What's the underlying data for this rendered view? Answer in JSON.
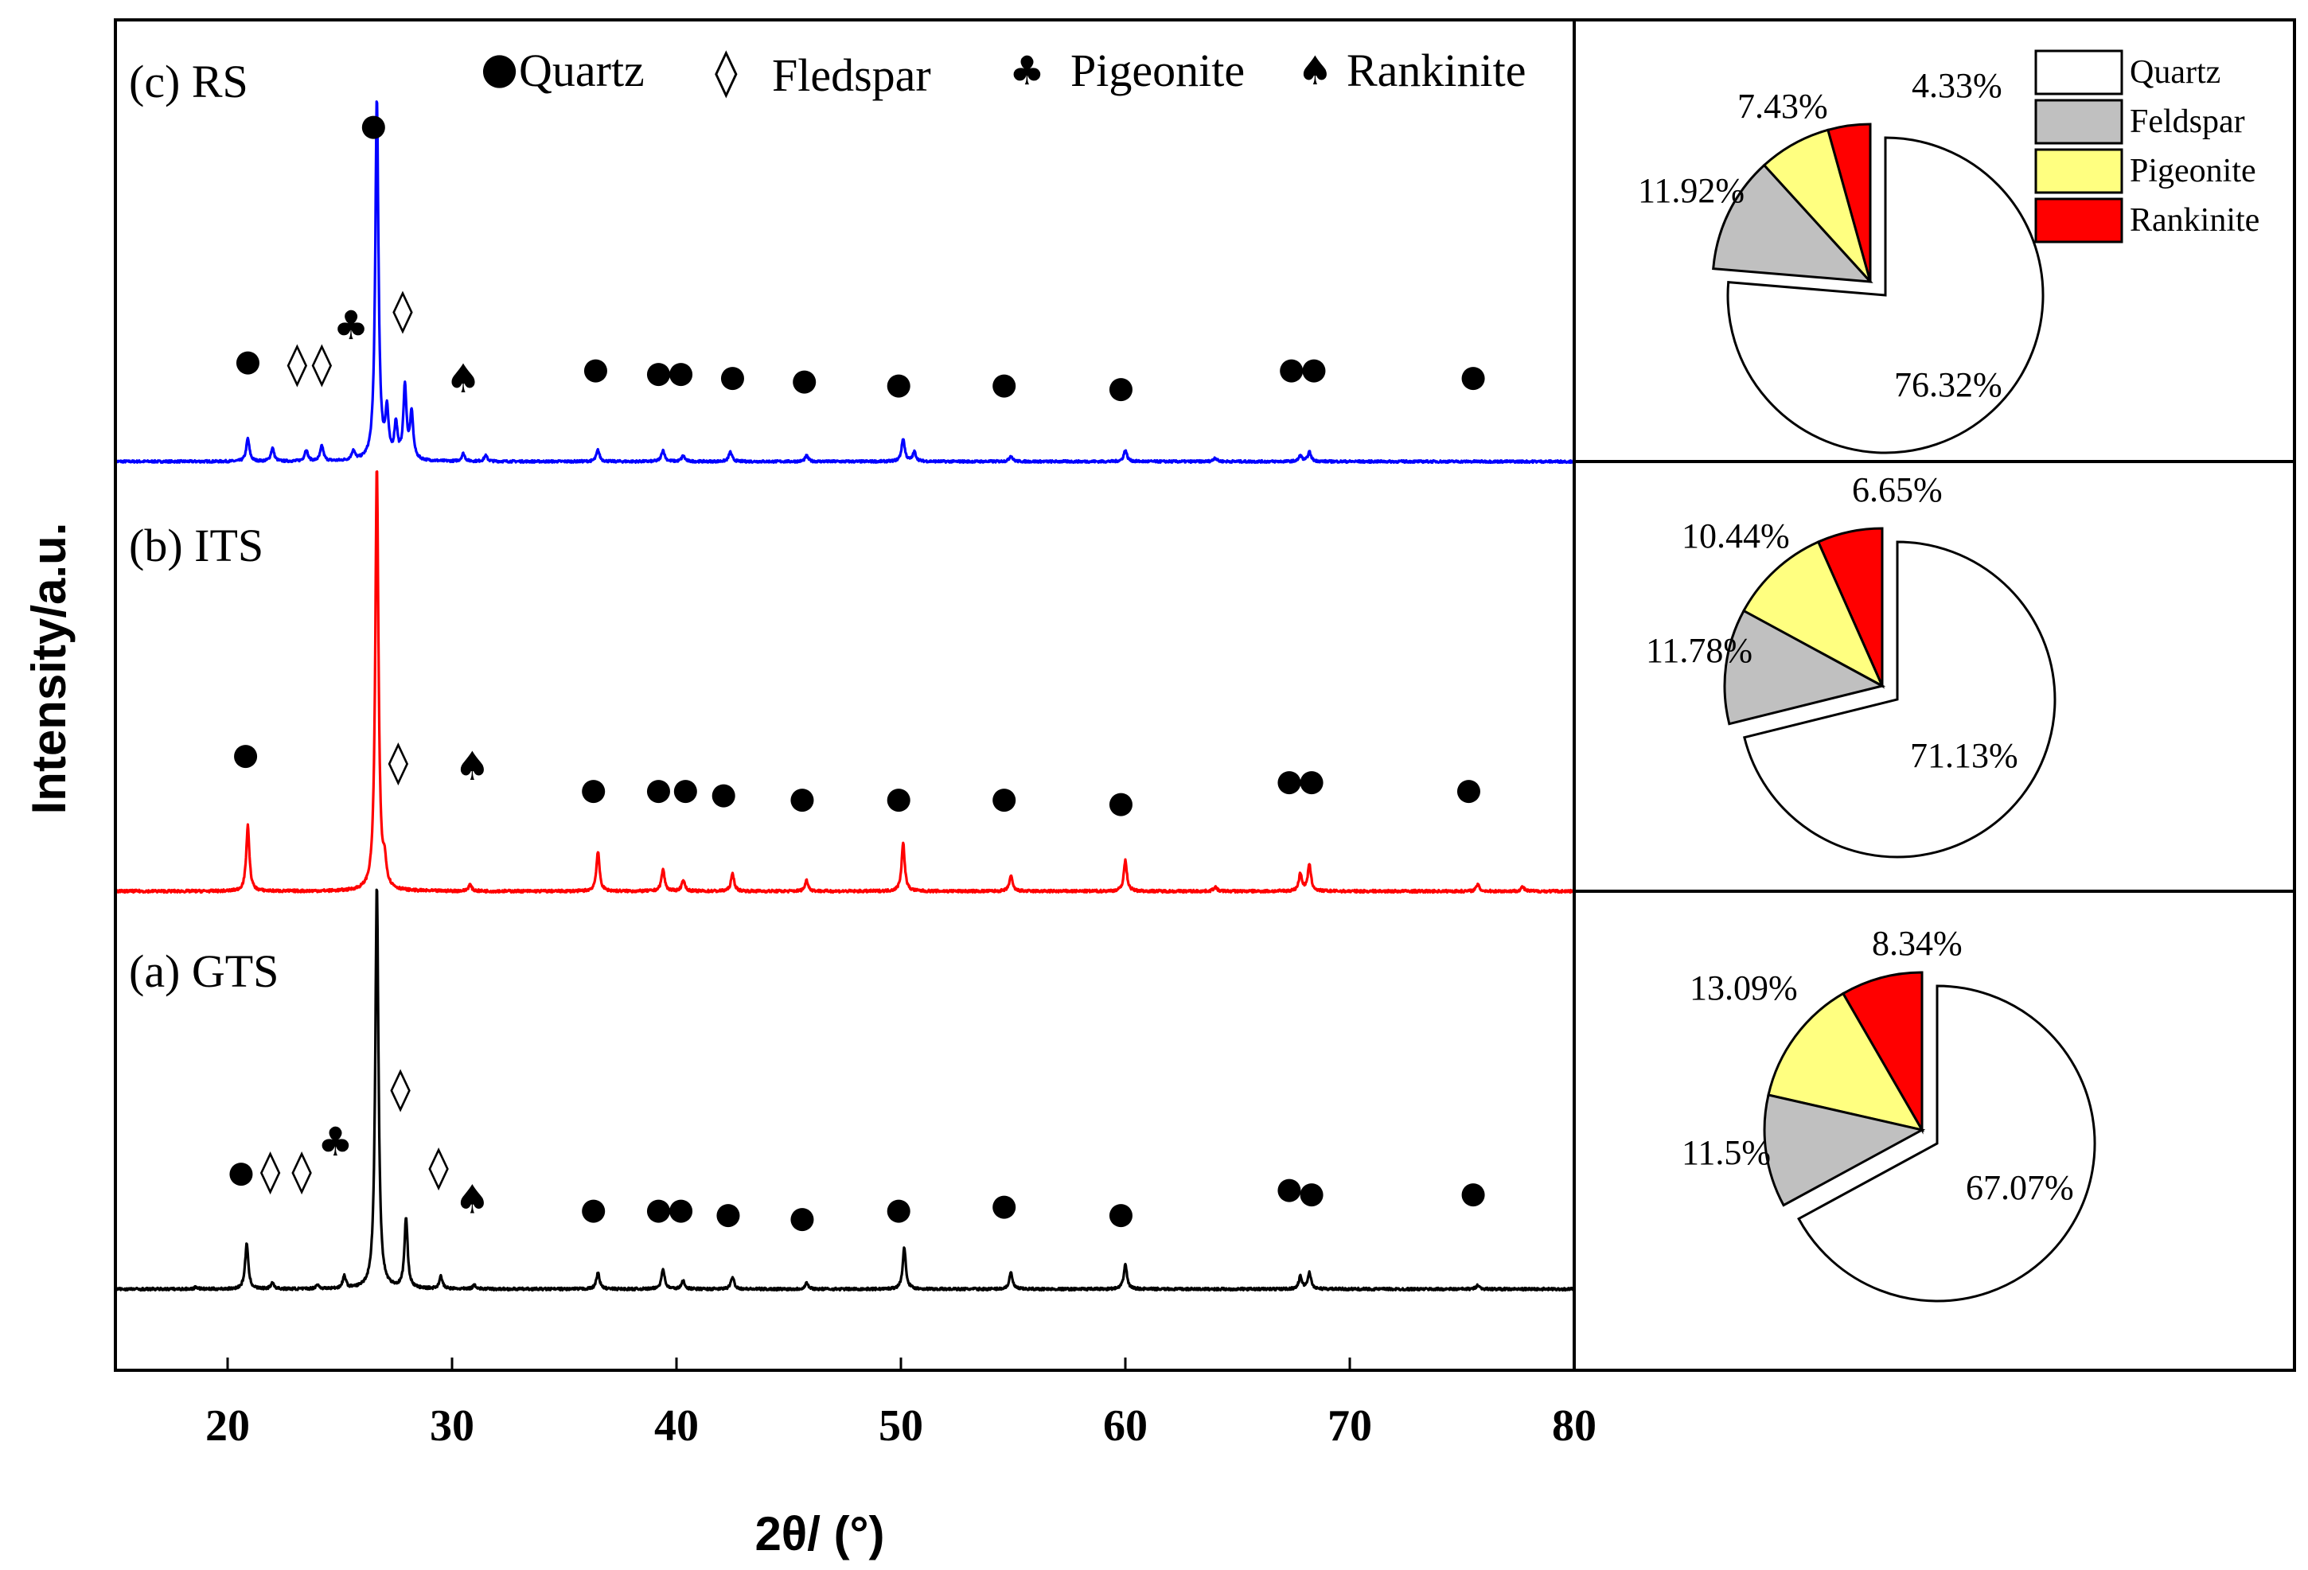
{
  "chart_data": [
    {
      "type": "line",
      "title": "",
      "xlabel": "2θ/ (°)",
      "ylabel": "Intensity/a.u.",
      "xlim": [
        15,
        80
      ],
      "xticks": [
        "20",
        "30",
        "40",
        "50",
        "60",
        "70",
        "80"
      ],
      "legend": {
        "placement": "top",
        "entries": [
          {
            "marker": "●",
            "label": "Quartz"
          },
          {
            "marker": "◊",
            "label": "Fledspar"
          },
          {
            "marker": "♣",
            "label": "Pigeonite"
          },
          {
            "marker": "♠",
            "label": "Rankinite"
          }
        ]
      },
      "series": [
        {
          "name": "(c) RS",
          "color": "#0000ff",
          "peaks": [
            {
              "x": 20.9,
              "h": 0.06
            },
            {
              "x": 22.0,
              "h": 0.035
            },
            {
              "x": 23.5,
              "h": 0.03
            },
            {
              "x": 24.2,
              "h": 0.04
            },
            {
              "x": 25.6,
              "h": 0.025
            },
            {
              "x": 26.65,
              "h": 0.95
            },
            {
              "x": 27.1,
              "h": 0.12
            },
            {
              "x": 27.5,
              "h": 0.09
            },
            {
              "x": 27.9,
              "h": 0.19
            },
            {
              "x": 28.2,
              "h": 0.12
            },
            {
              "x": 30.5,
              "h": 0.02
            },
            {
              "x": 31.5,
              "h": 0.015
            },
            {
              "x": 36.5,
              "h": 0.03
            },
            {
              "x": 39.4,
              "h": 0.03
            },
            {
              "x": 40.3,
              "h": 0.015
            },
            {
              "x": 42.4,
              "h": 0.025
            },
            {
              "x": 45.8,
              "h": 0.015
            },
            {
              "x": 50.1,
              "h": 0.06
            },
            {
              "x": 50.6,
              "h": 0.025
            },
            {
              "x": 54.9,
              "h": 0.015
            },
            {
              "x": 60.0,
              "h": 0.03
            },
            {
              "x": 64.0,
              "h": 0.01
            },
            {
              "x": 67.8,
              "h": 0.015
            },
            {
              "x": 68.2,
              "h": 0.025
            }
          ],
          "markers": [
            {
              "symbol": "●",
              "x": 26.5,
              "y": 0.88
            },
            {
              "symbol": "●",
              "x": 20.9,
              "y": 0.26
            },
            {
              "symbol": "◊",
              "x": 23.1,
              "y": 0.25
            },
            {
              "symbol": "◊",
              "x": 24.2,
              "y": 0.25
            },
            {
              "symbol": "♣",
              "x": 25.5,
              "y": 0.35
            },
            {
              "symbol": "◊",
              "x": 27.8,
              "y": 0.39
            },
            {
              "symbol": "♠",
              "x": 30.5,
              "y": 0.21
            },
            {
              "symbol": "●",
              "x": 36.4,
              "y": 0.24
            },
            {
              "symbol": "●",
              "x": 39.2,
              "y": 0.23
            },
            {
              "symbol": "●",
              "x": 40.2,
              "y": 0.23
            },
            {
              "symbol": "●",
              "x": 42.5,
              "y": 0.22
            },
            {
              "symbol": "●",
              "x": 45.7,
              "y": 0.21
            },
            {
              "symbol": "●",
              "x": 49.9,
              "y": 0.2
            },
            {
              "symbol": "●",
              "x": 54.6,
              "y": 0.2
            },
            {
              "symbol": "●",
              "x": 59.8,
              "y": 0.19
            },
            {
              "symbol": "●",
              "x": 67.4,
              "y": 0.24
            },
            {
              "symbol": "●",
              "x": 68.4,
              "y": 0.24
            },
            {
              "symbol": "●",
              "x": 75.5,
              "y": 0.22
            }
          ]
        },
        {
          "name": "(b) ITS",
          "color": "#ff0000",
          "peaks": [
            {
              "x": 20.9,
              "h": 0.15
            },
            {
              "x": 26.65,
              "h": 0.97
            },
            {
              "x": 27.0,
              "h": 0.05
            },
            {
              "x": 30.8,
              "h": 0.015
            },
            {
              "x": 36.5,
              "h": 0.09
            },
            {
              "x": 39.4,
              "h": 0.05
            },
            {
              "x": 40.3,
              "h": 0.025
            },
            {
              "x": 42.5,
              "h": 0.04
            },
            {
              "x": 45.8,
              "h": 0.025
            },
            {
              "x": 50.1,
              "h": 0.11
            },
            {
              "x": 54.9,
              "h": 0.035
            },
            {
              "x": 60.0,
              "h": 0.07
            },
            {
              "x": 64.0,
              "h": 0.01
            },
            {
              "x": 67.8,
              "h": 0.04
            },
            {
              "x": 68.2,
              "h": 0.06
            },
            {
              "x": 75.7,
              "h": 0.015
            },
            {
              "x": 77.7,
              "h": 0.01
            }
          ],
          "markers": [
            {
              "symbol": "●",
              "x": 20.8,
              "y": 0.31
            },
            {
              "symbol": "◊",
              "x": 27.6,
              "y": 0.29
            },
            {
              "symbol": "♠",
              "x": 30.9,
              "y": 0.28
            },
            {
              "symbol": "●",
              "x": 36.3,
              "y": 0.23
            },
            {
              "symbol": "●",
              "x": 39.2,
              "y": 0.23
            },
            {
              "symbol": "●",
              "x": 40.4,
              "y": 0.23
            },
            {
              "symbol": "●",
              "x": 42.1,
              "y": 0.22
            },
            {
              "symbol": "●",
              "x": 45.6,
              "y": 0.21
            },
            {
              "symbol": "●",
              "x": 49.9,
              "y": 0.21
            },
            {
              "symbol": "●",
              "x": 54.6,
              "y": 0.21
            },
            {
              "symbol": "●",
              "x": 59.8,
              "y": 0.2
            },
            {
              "symbol": "●",
              "x": 67.3,
              "y": 0.25
            },
            {
              "symbol": "●",
              "x": 68.3,
              "y": 0.25
            },
            {
              "symbol": "●",
              "x": 75.3,
              "y": 0.23
            }
          ]
        },
        {
          "name": "(a) GTS",
          "color": "#000000",
          "peaks": [
            {
              "x": 18.6,
              "h": 0.005
            },
            {
              "x": 20.85,
              "h": 0.11
            },
            {
              "x": 22.0,
              "h": 0.015
            },
            {
              "x": 24.0,
              "h": 0.01
            },
            {
              "x": 25.2,
              "h": 0.03
            },
            {
              "x": 26.65,
              "h": 0.98
            },
            {
              "x": 27.95,
              "h": 0.17
            },
            {
              "x": 29.5,
              "h": 0.03
            },
            {
              "x": 31.0,
              "h": 0.01
            },
            {
              "x": 36.5,
              "h": 0.04
            },
            {
              "x": 39.4,
              "h": 0.05
            },
            {
              "x": 40.3,
              "h": 0.02
            },
            {
              "x": 42.5,
              "h": 0.03
            },
            {
              "x": 45.8,
              "h": 0.015
            },
            {
              "x": 50.15,
              "h": 0.1
            },
            {
              "x": 54.9,
              "h": 0.04
            },
            {
              "x": 60.0,
              "h": 0.06
            },
            {
              "x": 67.8,
              "h": 0.03
            },
            {
              "x": 68.2,
              "h": 0.04
            },
            {
              "x": 75.7,
              "h": 0.01
            }
          ],
          "markers": [
            {
              "symbol": "●",
              "x": 20.6,
              "y": 0.28
            },
            {
              "symbol": "◊",
              "x": 21.9,
              "y": 0.28
            },
            {
              "symbol": "◊",
              "x": 23.3,
              "y": 0.28
            },
            {
              "symbol": "♣",
              "x": 24.8,
              "y": 0.35
            },
            {
              "symbol": "◊",
              "x": 27.7,
              "y": 0.48
            },
            {
              "symbol": "◊",
              "x": 29.4,
              "y": 0.29
            },
            {
              "symbol": "♠",
              "x": 30.9,
              "y": 0.21
            },
            {
              "symbol": "●",
              "x": 36.3,
              "y": 0.19
            },
            {
              "symbol": "●",
              "x": 39.2,
              "y": 0.19
            },
            {
              "symbol": "●",
              "x": 40.2,
              "y": 0.19
            },
            {
              "symbol": "●",
              "x": 42.3,
              "y": 0.18
            },
            {
              "symbol": "●",
              "x": 45.6,
              "y": 0.17
            },
            {
              "symbol": "●",
              "x": 49.9,
              "y": 0.19
            },
            {
              "symbol": "●",
              "x": 54.6,
              "y": 0.2
            },
            {
              "symbol": "●",
              "x": 59.8,
              "y": 0.18
            },
            {
              "symbol": "●",
              "x": 67.3,
              "y": 0.24
            },
            {
              "symbol": "●",
              "x": 68.3,
              "y": 0.23
            },
            {
              "symbol": "●",
              "x": 75.5,
              "y": 0.23
            }
          ]
        }
      ]
    },
    {
      "type": "pie",
      "name": "RS",
      "labels": [
        "Quartz",
        "Feldspar",
        "Pigeonite",
        "Rankinite"
      ],
      "values": [
        76.32,
        11.92,
        7.43,
        4.33
      ],
      "value_labels": [
        "76.32%",
        "11.92%",
        "7.43%",
        "4.33%"
      ],
      "colors": [
        "#ffffff",
        "#c0c0c0",
        "#ffff80",
        "#ff0000"
      ],
      "exploded": "Quartz",
      "legend": {
        "placement": "top-right",
        "entries": [
          {
            "label": "Quartz",
            "color": "#ffffff"
          },
          {
            "label": "Feldspar",
            "color": "#c0c0c0"
          },
          {
            "label": "Pigeonite",
            "color": "#ffff80"
          },
          {
            "label": "Rankinite",
            "color": "#ff0000"
          }
        ]
      }
    },
    {
      "type": "pie",
      "name": "ITS",
      "labels": [
        "Quartz",
        "Feldspar",
        "Pigeonite",
        "Rankinite"
      ],
      "values": [
        71.13,
        11.78,
        10.44,
        6.65
      ],
      "value_labels": [
        "71.13%",
        "11.78%",
        "10.44%",
        "6.65%"
      ],
      "colors": [
        "#ffffff",
        "#c0c0c0",
        "#ffff80",
        "#ff0000"
      ],
      "exploded": "Quartz"
    },
    {
      "type": "pie",
      "name": "GTS",
      "labels": [
        "Quartz",
        "Feldspar",
        "Pigeonite",
        "Rankinite"
      ],
      "values": [
        67.07,
        11.5,
        13.09,
        8.34
      ],
      "value_labels": [
        "67.07%",
        "11.5%",
        "13.09%",
        "8.34%"
      ],
      "colors": [
        "#ffffff",
        "#c0c0c0",
        "#ffff80",
        "#ff0000"
      ],
      "exploded": "Quartz"
    }
  ]
}
